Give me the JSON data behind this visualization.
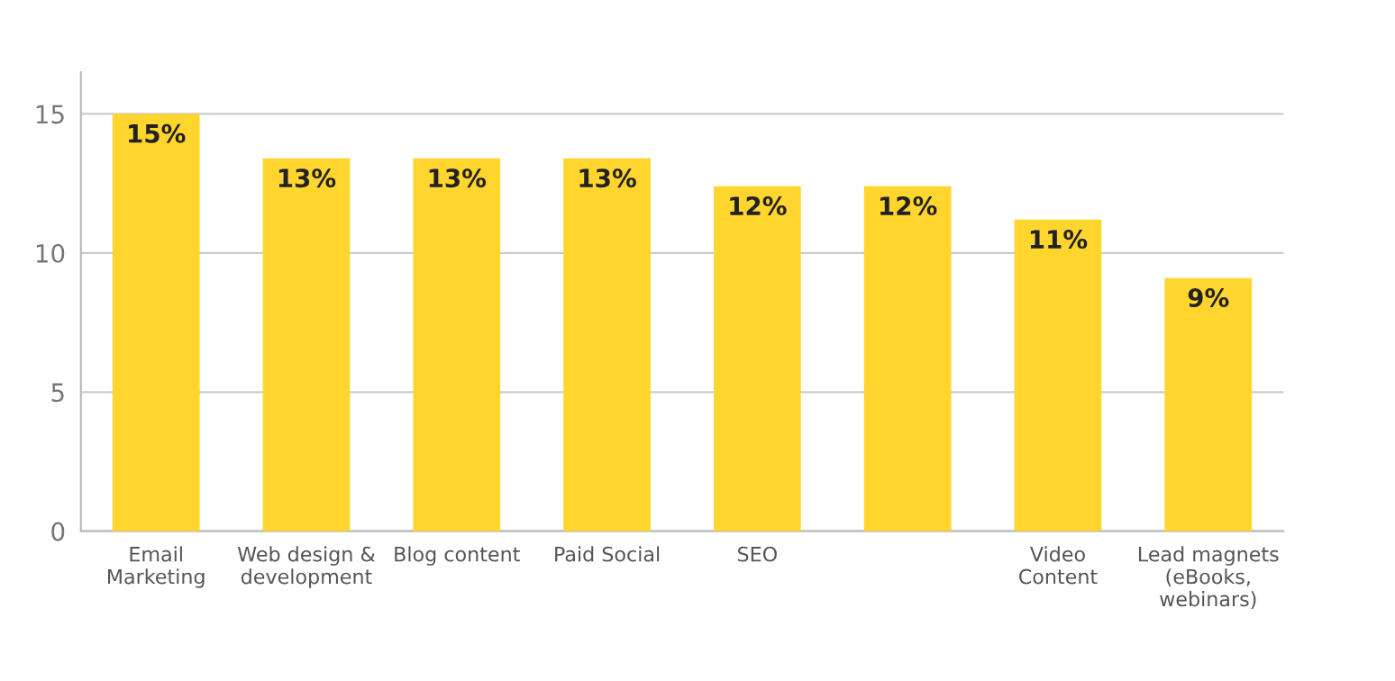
{
  "chart_data": {
    "type": "bar",
    "categories": [
      "Email\nMarketing",
      "Web design &\ndevelopment",
      "Blog content",
      "Paid Social",
      "SEO",
      null,
      "Video\nContent",
      "Lead magnets\n(eBooks,\nwebinars)"
    ],
    "values": [
      15,
      13.4,
      13.4,
      13.4,
      12.4,
      12.4,
      11.2,
      9.1
    ],
    "value_labels": [
      "15%",
      "13%",
      "13%",
      "13%",
      "12%",
      "12%",
      "11%",
      "9%"
    ],
    "color": "#ffd52e",
    "ylim": [
      0,
      16.5
    ],
    "yticks": [
      0,
      5,
      10,
      15
    ],
    "grid": "y"
  }
}
